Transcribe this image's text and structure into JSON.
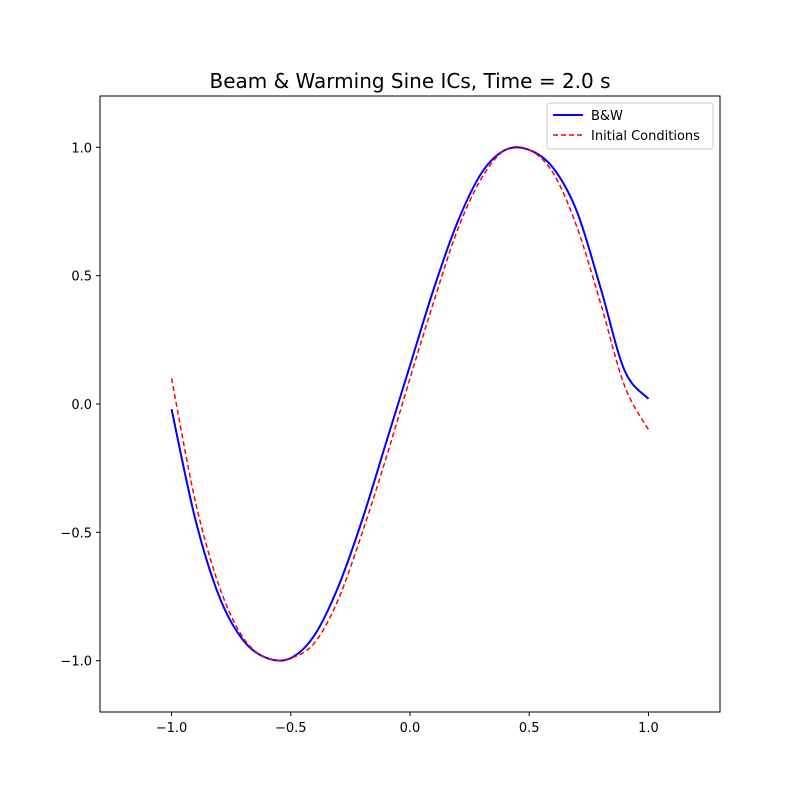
{
  "chart_data": {
    "type": "line",
    "title": "Beam & Warming Sine ICs, Time = 2.0 s",
    "xlabel": "",
    "ylabel": "",
    "xlim": [
      -1.3,
      1.3
    ],
    "ylim": [
      -1.2,
      1.2
    ],
    "xticks": [
      -1.0,
      -0.5,
      0.0,
      0.5,
      1.0
    ],
    "xtick_labels": [
      "−1.0",
      "−0.5",
      "0.0",
      "0.5",
      "1.0"
    ],
    "yticks": [
      -1.0,
      -0.5,
      0.0,
      0.5,
      1.0
    ],
    "ytick_labels": [
      "−1.0",
      "−0.5",
      "0.0",
      "0.5",
      "1.0"
    ],
    "grid": false,
    "legend_position": "top-right",
    "x": [
      -1.0,
      -0.9,
      -0.8,
      -0.7,
      -0.6,
      -0.5,
      -0.4,
      -0.3,
      -0.2,
      -0.1,
      0.0,
      0.1,
      0.2,
      0.3,
      0.4,
      0.5,
      0.6,
      0.7,
      0.8,
      0.9,
      1.0
    ],
    "series": [
      {
        "name": "B&W",
        "color": "#0000ff",
        "style": "solid",
        "values": [
          -0.02,
          -0.45,
          -0.75,
          -0.92,
          -0.99,
          -0.99,
          -0.9,
          -0.71,
          -0.45,
          -0.15,
          0.15,
          0.45,
          0.71,
          0.9,
          0.99,
          0.99,
          0.92,
          0.75,
          0.45,
          0.13,
          0.02
        ]
      },
      {
        "name": "Initial Conditions",
        "color": "#ff0000",
        "style": "dashed",
        "values": [
          0.1,
          -0.38,
          -0.71,
          -0.91,
          -0.99,
          -0.99,
          -0.93,
          -0.76,
          -0.5,
          -0.21,
          0.1,
          0.4,
          0.68,
          0.88,
          0.99,
          0.99,
          0.9,
          0.69,
          0.39,
          0.07,
          -0.1
        ]
      }
    ]
  }
}
